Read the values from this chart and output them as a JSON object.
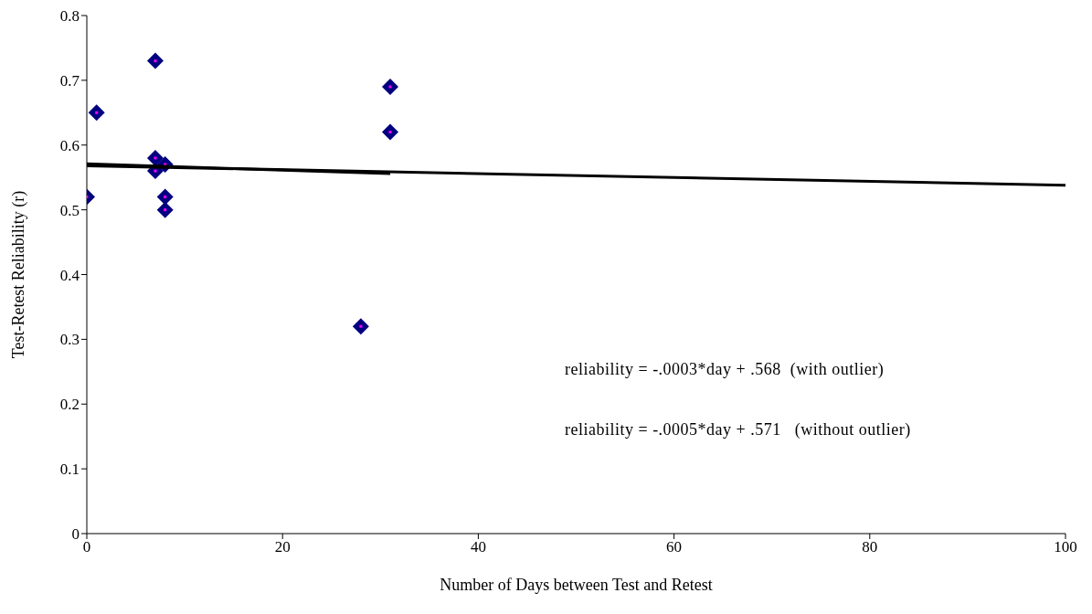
{
  "chart_data": {
    "type": "scatter",
    "xlabel": "Number of Days between Test and Retest",
    "ylabel": "Test-Retest Reliability (r)",
    "xlim": [
      0,
      100
    ],
    "xticks": [
      0,
      20,
      40,
      60,
      80,
      100
    ],
    "ylim": [
      0,
      0.8
    ],
    "yticks": [
      0,
      0.1,
      0.2,
      0.3,
      0.4,
      0.5,
      0.6,
      0.7,
      0.8
    ],
    "grid": false,
    "legend": false,
    "marker": "diamond",
    "series": [
      {
        "color": "#000080",
        "x": [
          0,
          1,
          7,
          7,
          7,
          8,
          8,
          8,
          28,
          31,
          31
        ],
        "values": [
          0.52,
          0.65,
          0.73,
          0.58,
          0.56,
          0.57,
          0.52,
          0.5,
          0.32,
          0.69,
          0.62
        ]
      },
      {
        "type": "line",
        "marker": "none",
        "color": "#000000",
        "x": [
          0,
          100
        ],
        "values": [
          0.568,
          0.538
        ]
      },
      {
        "type": "line",
        "marker": "none",
        "color": "#000000",
        "x": [
          0,
          31
        ],
        "values": [
          0.571,
          0.556
        ]
      }
    ],
    "annotations": [
      "reliability = -.0003*day + .568  (with outlier)",
      "reliability = -.0005*day + .571   (without outlier)"
    ]
  }
}
